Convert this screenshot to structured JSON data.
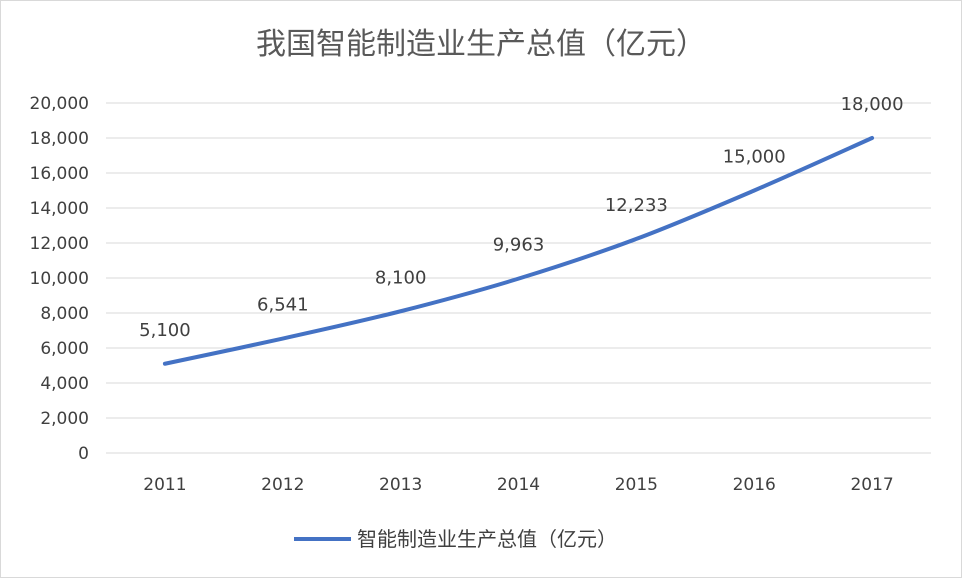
{
  "chart_data": {
    "type": "line",
    "title": "我国智能制造业生产总值（亿元）",
    "categories": [
      "2011",
      "2012",
      "2013",
      "2014",
      "2015",
      "2016",
      "2017"
    ],
    "series": [
      {
        "name": "智能制造业生产总值（亿元）",
        "values": [
          5100,
          6541,
          8100,
          9963,
          12233,
          15000,
          18000
        ],
        "labels": [
          "5,100",
          "6,541",
          "8,100",
          "9,963",
          "12,233",
          "15,000",
          "18,000"
        ],
        "color": "#4472C4"
      }
    ],
    "ylim": [
      0,
      20000
    ],
    "yticks": [
      "0",
      "2,000",
      "4,000",
      "6,000",
      "8,000",
      "10,000",
      "12,000",
      "14,000",
      "16,000",
      "18,000",
      "20,000"
    ],
    "grid": true,
    "smooth": true,
    "legend": "bottom",
    "xlabel": "",
    "ylabel": ""
  }
}
